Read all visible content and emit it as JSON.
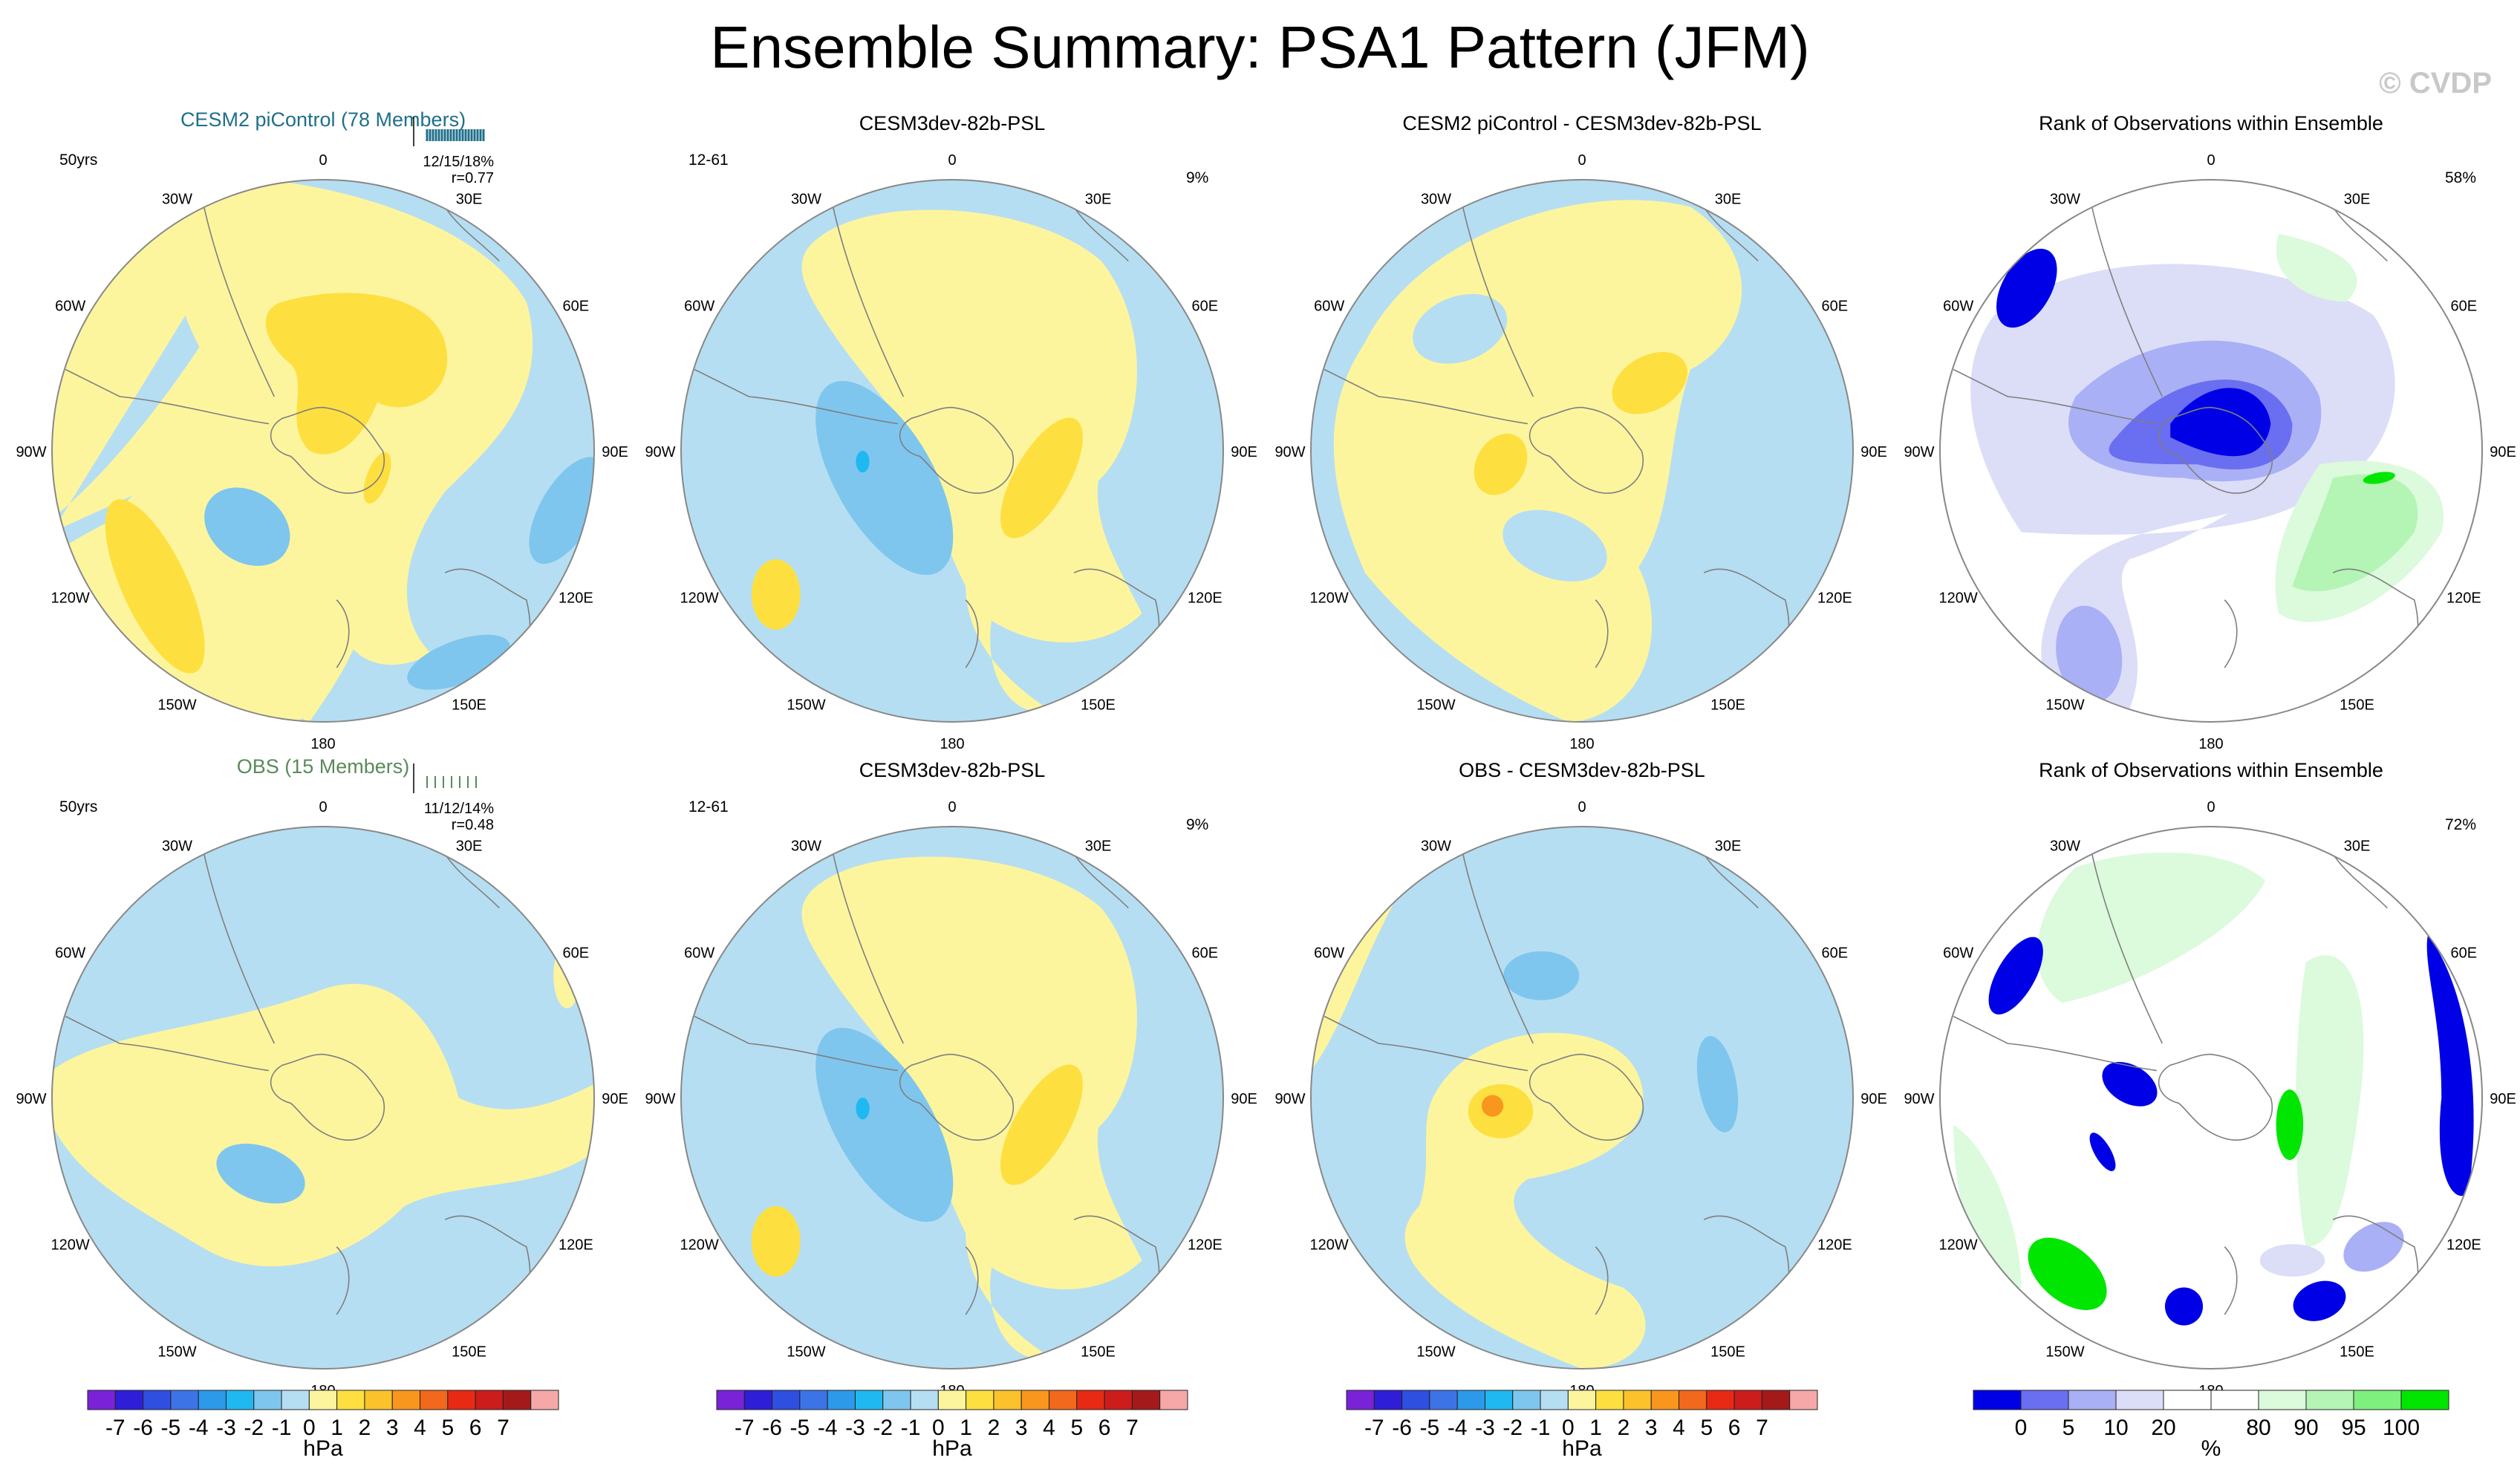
{
  "title": "Ensemble Summary: PSA1 Pattern (JFM)",
  "watermark": "© CVDP",
  "colors": {
    "blue_model_title": "#1f6f8b",
    "green_obs_title": "#5a8a5a",
    "coast": "#7f7f7f",
    "circle_edge": "#888888"
  },
  "longitude_labels": [
    "0",
    "30E",
    "60E",
    "90E",
    "120E",
    "150E",
    "180",
    "150W",
    "120W",
    "90W",
    "60W",
    "30W"
  ],
  "panels": [
    {
      "id": "p11",
      "title": "CESM2 piControl (78 Members)",
      "title_color": "blue",
      "left_note": "50yrs",
      "right_note": "",
      "stats": "12/15/18%",
      "r": "r=0.77",
      "map": "a1"
    },
    {
      "id": "p12",
      "title": "CESM3dev-82b-PSL",
      "title_color": "black",
      "left_note": "12-61",
      "right_note": "9%",
      "stats": "",
      "r": "",
      "map": "b"
    },
    {
      "id": "p13",
      "title": "CESM2 piControl - CESM3dev-82b-PSL",
      "title_color": "black",
      "left_note": "",
      "right_note": "",
      "stats": "",
      "r": "",
      "map": "c1"
    },
    {
      "id": "p14",
      "title": "Rank of Observations within Ensemble",
      "title_color": "black",
      "left_note": "",
      "right_note": "58%",
      "stats": "",
      "r": "",
      "map": "d1"
    },
    {
      "id": "p21",
      "title": "OBS (15 Members)",
      "title_color": "green",
      "left_note": "50yrs",
      "right_note": "",
      "stats": "11/12/14%",
      "r": "r=0.48",
      "map": "a2"
    },
    {
      "id": "p22",
      "title": "CESM3dev-82b-PSL",
      "title_color": "black",
      "left_note": "12-61",
      "right_note": "9%",
      "stats": "",
      "r": "",
      "map": "b"
    },
    {
      "id": "p23",
      "title": "OBS - CESM3dev-82b-PSL",
      "title_color": "black",
      "left_note": "",
      "right_note": "",
      "stats": "",
      "r": "",
      "map": "c2"
    },
    {
      "id": "p24",
      "title": "Rank of Observations within Ensemble",
      "title_color": "black",
      "left_note": "",
      "right_note": "72%",
      "stats": "",
      "r": "",
      "map": "d2"
    }
  ],
  "colorbars": [
    {
      "id": "cb1",
      "units": "hPa",
      "colors": [
        "#7a22d8",
        "#2e1ed8",
        "#2e4fe0",
        "#3c74e8",
        "#2c9ae8",
        "#20b8f0",
        "#7ec6ee",
        "#b6def2",
        "#fdf59e",
        "#fde040",
        "#fcc22c",
        "#f8961e",
        "#f2681c",
        "#e82a14",
        "#cc1c1c",
        "#a41a1a",
        "#f6a8a8"
      ],
      "labels": [
        "-7",
        "-6",
        "-5",
        "-4",
        "-3",
        "-2",
        "-1",
        "0",
        "1",
        "2",
        "3",
        "4",
        "5",
        "6",
        "7"
      ]
    },
    {
      "id": "cb2",
      "units": "hPa",
      "colors": [
        "#7a22d8",
        "#2e1ed8",
        "#2e4fe0",
        "#3c74e8",
        "#2c9ae8",
        "#20b8f0",
        "#7ec6ee",
        "#b6def2",
        "#fdf59e",
        "#fde040",
        "#fcc22c",
        "#f8961e",
        "#f2681c",
        "#e82a14",
        "#cc1c1c",
        "#a41a1a",
        "#f6a8a8"
      ],
      "labels": [
        "-7",
        "-6",
        "-5",
        "-4",
        "-3",
        "-2",
        "-1",
        "0",
        "1",
        "2",
        "3",
        "4",
        "5",
        "6",
        "7"
      ]
    },
    {
      "id": "cb3",
      "units": "hPa",
      "colors": [
        "#7a22d8",
        "#2e1ed8",
        "#2e4fe0",
        "#3c74e8",
        "#2c9ae8",
        "#20b8f0",
        "#7ec6ee",
        "#b6def2",
        "#fdf59e",
        "#fde040",
        "#fcc22c",
        "#f8961e",
        "#f2681c",
        "#e82a14",
        "#cc1c1c",
        "#a41a1a",
        "#f6a8a8"
      ],
      "labels": [
        "-7",
        "-6",
        "-5",
        "-4",
        "-3",
        "-2",
        "-1",
        "0",
        "1",
        "2",
        "3",
        "4",
        "5",
        "6",
        "7"
      ]
    },
    {
      "id": "cb4",
      "units": "%",
      "colors": [
        "#0000e6",
        "#6a6ef0",
        "#aab0f6",
        "#dcdef8",
        "#ffffff",
        "#ffffff",
        "#dcfadc",
        "#b4f4b4",
        "#7ef07e",
        "#00e600"
      ],
      "labels": [
        "0",
        "5",
        "10",
        "20",
        "80",
        "90",
        "95",
        "100"
      ]
    }
  ],
  "chart_data": [
    {
      "type": "heatmap",
      "projection": "south polar stereographic",
      "title": "CESM2 piControl (78 Members)",
      "variable": "PSL regression",
      "units": "hPa",
      "levels": [
        -7,
        -6,
        -5,
        -4,
        -3,
        -2,
        -1,
        0,
        1,
        2,
        3,
        4,
        5,
        6,
        7
      ],
      "annotations": [
        "50yrs",
        "12/15/18%",
        "r=0.77"
      ]
    },
    {
      "type": "heatmap",
      "projection": "south polar stereographic",
      "title": "CESM3dev-82b-PSL",
      "variable": "PSL regression",
      "units": "hPa",
      "levels": [
        -7,
        -6,
        -5,
        -4,
        -3,
        -2,
        -1,
        0,
        1,
        2,
        3,
        4,
        5,
        6,
        7
      ],
      "annotations": [
        "12-61",
        "9%"
      ]
    },
    {
      "type": "heatmap",
      "projection": "south polar stereographic",
      "title": "CESM2 piControl - CESM3dev-82b-PSL",
      "variable": "PSL difference",
      "units": "hPa",
      "levels": [
        -7,
        -6,
        -5,
        -4,
        -3,
        -2,
        -1,
        0,
        1,
        2,
        3,
        4,
        5,
        6,
        7
      ],
      "annotations": []
    },
    {
      "type": "heatmap",
      "projection": "south polar stereographic",
      "title": "Rank of Observations within Ensemble",
      "variable": "rank",
      "units": "%",
      "levels": [
        0,
        5,
        10,
        20,
        80,
        90,
        95,
        100
      ],
      "annotations": [
        "58%"
      ]
    },
    {
      "type": "heatmap",
      "projection": "south polar stereographic",
      "title": "OBS (15 Members)",
      "variable": "PSL regression",
      "units": "hPa",
      "levels": [
        -7,
        -6,
        -5,
        -4,
        -3,
        -2,
        -1,
        0,
        1,
        2,
        3,
        4,
        5,
        6,
        7
      ],
      "annotations": [
        "50yrs",
        "11/12/14%",
        "r=0.48"
      ]
    },
    {
      "type": "heatmap",
      "projection": "south polar stereographic",
      "title": "CESM3dev-82b-PSL",
      "variable": "PSL regression",
      "units": "hPa",
      "levels": [
        -7,
        -6,
        -5,
        -4,
        -3,
        -2,
        -1,
        0,
        1,
        2,
        3,
        4,
        5,
        6,
        7
      ],
      "annotations": [
        "12-61",
        "9%"
      ]
    },
    {
      "type": "heatmap",
      "projection": "south polar stereographic",
      "title": "OBS - CESM3dev-82b-PSL",
      "variable": "PSL difference",
      "units": "hPa",
      "levels": [
        -7,
        -6,
        -5,
        -4,
        -3,
        -2,
        -1,
        0,
        1,
        2,
        3,
        4,
        5,
        6,
        7
      ],
      "annotations": []
    },
    {
      "type": "heatmap",
      "projection": "south polar stereographic",
      "title": "Rank of Observations within Ensemble",
      "variable": "rank",
      "units": "%",
      "levels": [
        0,
        5,
        10,
        20,
        80,
        90,
        95,
        100
      ],
      "annotations": [
        "72%"
      ]
    }
  ]
}
